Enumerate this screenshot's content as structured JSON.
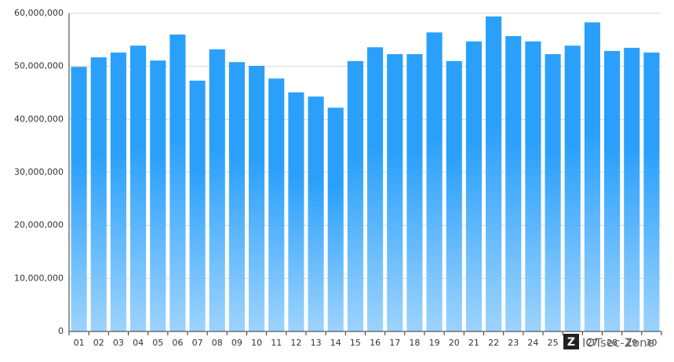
{
  "chart_data": {
    "type": "bar",
    "categories": [
      "01",
      "02",
      "03",
      "04",
      "05",
      "06",
      "07",
      "08",
      "09",
      "10",
      "11",
      "12",
      "13",
      "14",
      "15",
      "16",
      "17",
      "18",
      "19",
      "20",
      "21",
      "22",
      "23",
      "24",
      "25",
      "26",
      "27",
      "28",
      "29",
      "30"
    ],
    "values": [
      49900000,
      51700000,
      52600000,
      53900000,
      51100000,
      56000000,
      47300000,
      53200000,
      50800000,
      50100000,
      47700000,
      45100000,
      44300000,
      42200000,
      51000000,
      53600000,
      52300000,
      52300000,
      56400000,
      51000000,
      54700000,
      59400000,
      55700000,
      54700000,
      52300000,
      53900000,
      58300000,
      52900000,
      53500000,
      52600000
    ],
    "color": "#2aa0fb",
    "color_bottom": "#9dd3fd",
    "ylim": [
      0,
      60000000
    ],
    "yticks": [
      0,
      {
        "value": 10000000,
        "label": "10,000,000"
      },
      {
        "value": 20000000,
        "label": "20,000,000"
      },
      {
        "value": 30000000,
        "label": "30,000,000"
      },
      {
        "value": 40000000,
        "label": "40,000,000"
      },
      {
        "value": 50000000,
        "label": "50,000,000"
      },
      {
        "value": 60000000,
        "label": "60,000,000"
      }
    ],
    "grid": true,
    "watermark": "IOTsec-Zone"
  }
}
